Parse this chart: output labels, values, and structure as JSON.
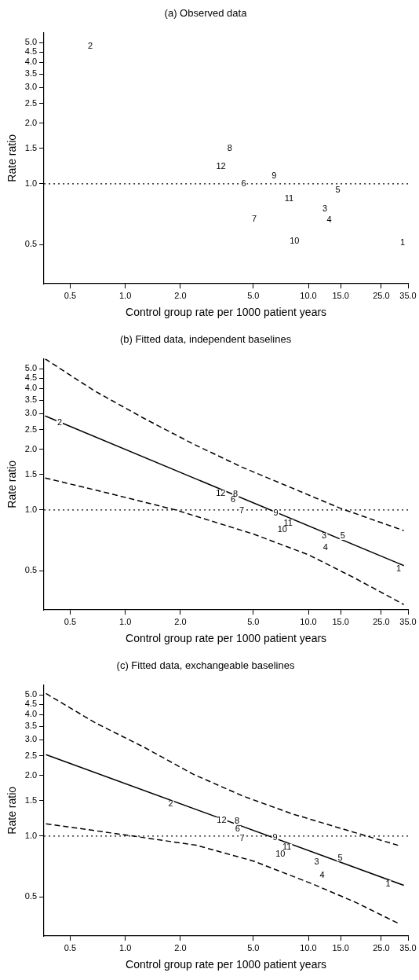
{
  "chart_data": [
    {
      "type": "scatter",
      "title": "(a) Observed data",
      "xlabel": "Control group rate per 1000 patient years",
      "ylabel": "Rate ratio",
      "log": "xy",
      "grid": false,
      "legend": false,
      "xlim": [
        0.36,
        35
      ],
      "ylim": [
        0.32,
        5.6
      ],
      "xticks": [
        {
          "value": 0.5,
          "label": "0.5"
        },
        {
          "value": 1,
          "label": "1.0"
        },
        {
          "value": 2,
          "label": "2.0"
        },
        {
          "value": 5,
          "label": "5.0"
        },
        {
          "value": 10,
          "label": "10.0"
        },
        {
          "value": 15,
          "label": "15.0"
        },
        {
          "value": 25,
          "label": "25.0"
        },
        {
          "value": 35,
          "label": "35.0"
        }
      ],
      "yticks": [
        {
          "value": 0.5,
          "label": "0.5"
        },
        {
          "value": 1,
          "label": "1.0"
        },
        {
          "value": 1.5,
          "label": "1.5"
        },
        {
          "value": 2,
          "label": "2.0"
        },
        {
          "value": 2.5,
          "label": "2.5"
        },
        {
          "value": 3,
          "label": "3.0"
        },
        {
          "value": 3.5,
          "label": "3.5"
        },
        {
          "value": 4,
          "label": "4.0"
        },
        {
          "value": 4.5,
          "label": "4.5"
        },
        {
          "value": 5,
          "label": "5.0"
        }
      ],
      "ref_lines": [
        {
          "axis": "y",
          "value": 1,
          "color": "#000000",
          "line_style": "dotted"
        }
      ],
      "annotations": [
        {
          "text": "1",
          "x": 32.7,
          "y": 0.51
        },
        {
          "text": "2",
          "x": 0.644,
          "y": 4.8
        },
        {
          "text": "3",
          "x": 12.3,
          "y": 0.75
        },
        {
          "text": "4",
          "x": 13.0,
          "y": 0.66
        },
        {
          "text": "5",
          "x": 14.5,
          "y": 0.93
        },
        {
          "text": "6",
          "x": 4.43,
          "y": 1.0
        },
        {
          "text": "7",
          "x": 5.07,
          "y": 0.67
        },
        {
          "text": "8",
          "x": 3.72,
          "y": 1.49
        },
        {
          "text": "9",
          "x": 6.49,
          "y": 1.09
        },
        {
          "text": "10",
          "x": 8.4,
          "y": 0.52
        },
        {
          "text": "11",
          "x": 7.84,
          "y": 0.84
        },
        {
          "text": "12",
          "x": 3.33,
          "y": 1.22
        }
      ]
    },
    {
      "type": "scatter",
      "title": "(b) Fitted data, independent baselines",
      "xlabel": "Control group rate per 1000 patient years",
      "ylabel": "Rate ratio",
      "log": "xy",
      "grid": false,
      "legend": false,
      "xlim": [
        0.36,
        35
      ],
      "ylim": [
        0.32,
        5.6
      ],
      "xticks": [
        {
          "value": 0.5,
          "label": "0.5"
        },
        {
          "value": 1,
          "label": "1.0"
        },
        {
          "value": 2,
          "label": "2.0"
        },
        {
          "value": 5,
          "label": "5.0"
        },
        {
          "value": 10,
          "label": "10.0"
        },
        {
          "value": 15,
          "label": "15.0"
        },
        {
          "value": 25,
          "label": "25.0"
        },
        {
          "value": 35,
          "label": "35.0"
        }
      ],
      "yticks": [
        {
          "value": 0.5,
          "label": "0.5"
        },
        {
          "value": 1,
          "label": "1.0"
        },
        {
          "value": 1.5,
          "label": "1.5"
        },
        {
          "value": 2,
          "label": "2.0"
        },
        {
          "value": 2.5,
          "label": "2.5"
        },
        {
          "value": 3,
          "label": "3.0"
        },
        {
          "value": 3.5,
          "label": "3.5"
        },
        {
          "value": 4,
          "label": "4.0"
        },
        {
          "value": 4.5,
          "label": "4.5"
        },
        {
          "value": 5,
          "label": "5.0"
        }
      ],
      "ref_lines": [
        {
          "axis": "y",
          "value": 1,
          "color": "#000000",
          "line_style": "dotted"
        }
      ],
      "series": [
        {
          "type": "line",
          "line_style": "solid",
          "color": "#000000",
          "x": [
            0.365,
            33.2
          ],
          "values": [
            2.92,
            0.53
          ]
        },
        {
          "type": "line",
          "line_style": "dashed",
          "color": "#000000",
          "x": [
            0.365,
            0.678,
            1.257,
            2.33,
            4.33,
            8.03,
            14.9,
            33.2
          ],
          "values": [
            5.6,
            3.89,
            2.85,
            2.13,
            1.63,
            1.29,
            1.02,
            0.79
          ]
        },
        {
          "type": "line",
          "line_style": "dashed",
          "color": "#000000",
          "x": [
            0.365,
            0.81,
            1.88,
            5.0,
            10.0,
            17.9,
            33.2
          ],
          "values": [
            1.44,
            1.21,
            1.0,
            0.76,
            0.6,
            0.46,
            0.34
          ]
        }
      ],
      "annotations": [
        {
          "text": "1",
          "x": 31.1,
          "y": 0.51
        },
        {
          "text": "2",
          "x": 0.438,
          "y": 2.71
        },
        {
          "text": "3",
          "x": 12.2,
          "y": 0.74
        },
        {
          "text": "4",
          "x": 12.4,
          "y": 0.65
        },
        {
          "text": "5",
          "x": 15.4,
          "y": 0.74
        },
        {
          "text": "6",
          "x": 3.88,
          "y": 1.12
        },
        {
          "text": "7",
          "x": 4.33,
          "y": 0.99
        },
        {
          "text": "8",
          "x": 4.0,
          "y": 1.2
        },
        {
          "text": "9",
          "x": 6.65,
          "y": 0.96
        },
        {
          "text": "10",
          "x": 7.21,
          "y": 0.8
        },
        {
          "text": "11",
          "x": 7.75,
          "y": 0.86
        },
        {
          "text": "12",
          "x": 3.32,
          "y": 1.21
        }
      ]
    },
    {
      "type": "scatter",
      "title": "(c) Fitted data, exchangeable baselines",
      "xlabel": "Control group rate per 1000 patient years",
      "ylabel": "Rate ratio",
      "log": "xy",
      "grid": false,
      "legend": false,
      "xlim": [
        0.36,
        35
      ],
      "ylim": [
        0.32,
        5.6
      ],
      "xticks": [
        {
          "value": 0.5,
          "label": "0.5"
        },
        {
          "value": 1,
          "label": "1.0"
        },
        {
          "value": 2,
          "label": "2.0"
        },
        {
          "value": 5,
          "label": "5.0"
        },
        {
          "value": 10,
          "label": "10.0"
        },
        {
          "value": 15,
          "label": "15.0"
        },
        {
          "value": 25,
          "label": "25.0"
        },
        {
          "value": 35,
          "label": "35.0"
        }
      ],
      "yticks": [
        {
          "value": 0.5,
          "label": "0.5"
        },
        {
          "value": 1,
          "label": "1.0"
        },
        {
          "value": 1.5,
          "label": "1.5"
        },
        {
          "value": 2,
          "label": "2.0"
        },
        {
          "value": 2.5,
          "label": "2.5"
        },
        {
          "value": 3,
          "label": "3.0"
        },
        {
          "value": 3.5,
          "label": "3.5"
        },
        {
          "value": 4,
          "label": "4.0"
        },
        {
          "value": 4.5,
          "label": "4.5"
        },
        {
          "value": 5,
          "label": "5.0"
        }
      ],
      "ref_lines": [
        {
          "axis": "y",
          "value": 1,
          "color": "#000000",
          "line_style": "dotted"
        }
      ],
      "series": [
        {
          "type": "line",
          "line_style": "solid",
          "color": "#000000",
          "x": [
            0.369,
            33.2
          ],
          "values": [
            2.53,
            0.57
          ]
        },
        {
          "type": "line",
          "line_style": "dashed",
          "color": "#000000",
          "x": [
            0.369,
            0.685,
            1.27,
            2.36,
            4.38,
            8.12,
            15.1,
            30.9
          ],
          "values": [
            5.08,
            3.64,
            2.75,
            2.02,
            1.58,
            1.29,
            1.09,
            0.9
          ]
        },
        {
          "type": "line",
          "line_style": "dashed",
          "color": "#000000",
          "x": [
            0.369,
            0.95,
            2.45,
            5.06,
            10.5,
            18.1,
            30.9
          ],
          "values": [
            1.15,
            1.02,
            0.9,
            0.75,
            0.58,
            0.47,
            0.37
          ]
        }
      ],
      "annotations": [
        {
          "text": "1",
          "x": 27.2,
          "y": 0.58
        },
        {
          "text": "2",
          "x": 1.77,
          "y": 1.44
        },
        {
          "text": "3",
          "x": 11.1,
          "y": 0.74
        },
        {
          "text": "4",
          "x": 11.9,
          "y": 0.64
        },
        {
          "text": "5",
          "x": 14.9,
          "y": 0.78
        },
        {
          "text": "6",
          "x": 4.11,
          "y": 1.08
        },
        {
          "text": "7",
          "x": 4.35,
          "y": 0.97
        },
        {
          "text": "8",
          "x": 4.08,
          "y": 1.18
        },
        {
          "text": "9",
          "x": 6.58,
          "y": 0.98
        },
        {
          "text": "10",
          "x": 7.03,
          "y": 0.81
        },
        {
          "text": "11",
          "x": 7.64,
          "y": 0.88
        },
        {
          "text": "12",
          "x": 3.36,
          "y": 1.19
        }
      ]
    }
  ]
}
